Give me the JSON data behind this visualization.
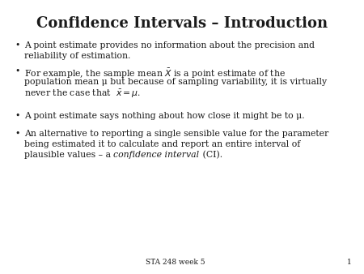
{
  "title": "Confidence Intervals – Introduction",
  "title_fontsize": 13,
  "title_fontweight": "bold",
  "body_fontsize": 7.8,
  "footer_text": "STA 248 week 5",
  "footer_number": "1",
  "background_color": "#ffffff",
  "text_color": "#1a1a1a",
  "bullet_char": "•",
  "line1_b1": "A point estimate provides no information about the precision and",
  "line2_b1": "reliability of estimation.",
  "line1_b2": "For example, the sample mean $\\bar{X}$ is a point estimate of the",
  "line2_b2": "population mean μ but because of sampling variability, it is virtually",
  "line3_b2": "never the case that  $\\bar{x} = \\mu$.",
  "line1_b3": "A point estimate says nothing about how close it might be to μ.",
  "line1_b4": "An alternative to reporting a single sensible value for the parameter",
  "line2_b4": "being estimated it to calculate and report an entire interval of",
  "line3_b4_pre": "plausible values – a ",
  "line3_b4_italic": "confidence interval",
  "line3_b4_post": " (CI)."
}
